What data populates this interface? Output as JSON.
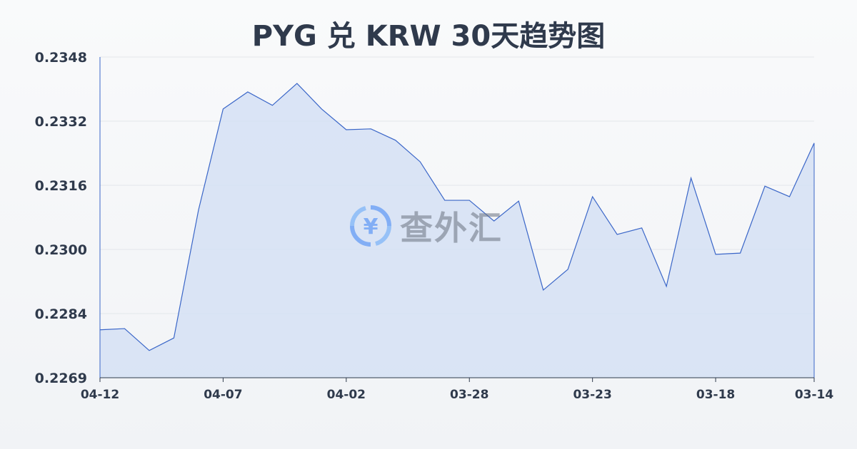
{
  "chart_data": {
    "type": "area",
    "title": "PYG 兑 KRW 30天趋势图",
    "xlabel": "",
    "ylabel": "",
    "ylim": [
      0.2269,
      0.2348
    ],
    "yticks": [
      "0.2348",
      "0.2332",
      "0.2316",
      "0.2300",
      "0.2284",
      "0.2269"
    ],
    "xticks": [
      "04-12",
      "04-07",
      "04-02",
      "03-28",
      "03-23",
      "03-18",
      "03-14"
    ],
    "grid": true,
    "x": [
      "04-12",
      "04-11",
      "04-10",
      "04-09",
      "04-08",
      "04-07",
      "04-06",
      "04-05",
      "04-04",
      "04-03",
      "04-02",
      "04-01",
      "03-31",
      "03-30",
      "03-29",
      "03-28",
      "03-27",
      "03-26",
      "03-25",
      "03-24",
      "03-23",
      "03-22",
      "03-21",
      "03-20",
      "03-19",
      "03-18",
      "03-17",
      "03-16",
      "03-15",
      "03-14"
    ],
    "values": [
      0.22808,
      0.22811,
      0.22757,
      0.22788,
      0.23103,
      0.23352,
      0.23394,
      0.23361,
      0.23415,
      0.23352,
      0.23301,
      0.23303,
      0.23275,
      0.23222,
      0.23127,
      0.23127,
      0.23076,
      0.23125,
      0.22906,
      0.22957,
      0.23136,
      0.23043,
      0.23059,
      0.22915,
      0.23182,
      0.22994,
      0.22997,
      0.23162,
      0.23136,
      0.23268
    ],
    "colors": {
      "line": "#3a66c8",
      "fill": "#d5e1f5"
    }
  },
  "watermark": {
    "text": "查外汇",
    "icon": "yen-exchange-icon"
  }
}
